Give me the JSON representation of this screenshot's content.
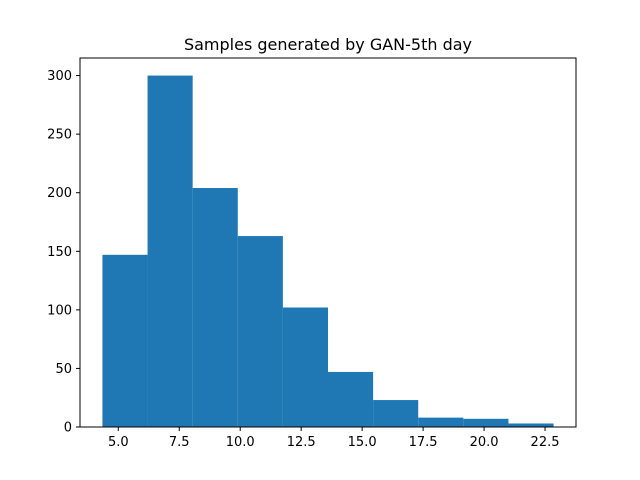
{
  "chart_data": {
    "type": "bar",
    "title": "Samples generated by GAN-5th day",
    "xlabel": "",
    "ylabel": "",
    "bin_edges": [
      4.35,
      6.2,
      8.05,
      9.9,
      11.75,
      13.6,
      15.45,
      17.3,
      19.15,
      21.0,
      22.85
    ],
    "values": [
      147,
      300,
      204,
      163,
      102,
      47,
      23,
      8,
      7,
      3
    ],
    "xlim": [
      3.43,
      23.77
    ],
    "ylim": [
      0,
      315
    ],
    "x_ticks": [
      5.0,
      7.5,
      10.0,
      12.5,
      15.0,
      17.5,
      20.0,
      22.5
    ],
    "x_tick_labels": [
      "5.0",
      "7.5",
      "10.0",
      "12.5",
      "15.0",
      "17.5",
      "20.0",
      "22.5"
    ],
    "y_ticks": [
      0,
      50,
      100,
      150,
      200,
      250,
      300
    ],
    "y_tick_labels": [
      "0",
      "50",
      "100",
      "150",
      "200",
      "250",
      "300"
    ],
    "grid": false,
    "bar_color": "#1f77b4"
  }
}
